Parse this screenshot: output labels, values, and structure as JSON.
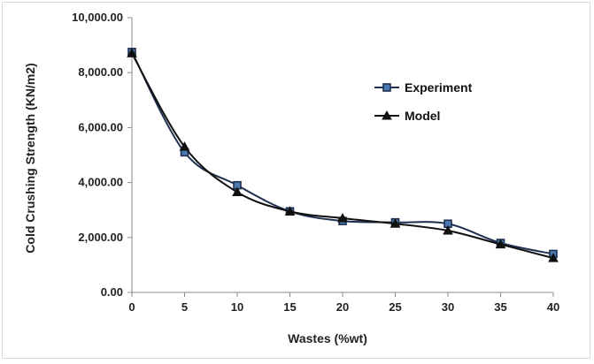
{
  "chart_data": {
    "type": "line",
    "title": "",
    "xlabel": "Wastes (%wt)",
    "ylabel": "Cold Crushing Strength (KN/m2)",
    "x": [
      0,
      5,
      10,
      15,
      20,
      25,
      30,
      35,
      40
    ],
    "x_ticks": [
      "0",
      "5",
      "10",
      "15",
      "20",
      "25",
      "30",
      "35",
      "40"
    ],
    "y_ticks": [
      {
        "value": 0,
        "label": "0.00"
      },
      {
        "value": 2000,
        "label": "2,000.00"
      },
      {
        "value": 4000,
        "label": "4,000.00"
      },
      {
        "value": 6000,
        "label": "6,000.00"
      },
      {
        "value": 8000,
        "label": "8,000.00"
      },
      {
        "value": 10000,
        "label": "10,000.00"
      }
    ],
    "xlim": [
      0,
      40
    ],
    "ylim": [
      0,
      10000
    ],
    "grid": false,
    "legend_position": "top-right",
    "series": [
      {
        "name": "Experiment",
        "marker": "square",
        "color": "#1f2f4f",
        "marker_fill": "#4a7ab0",
        "values": [
          8750,
          5100,
          3900,
          2950,
          2600,
          2550,
          2500,
          1800,
          1400
        ]
      },
      {
        "name": "Model",
        "marker": "triangle",
        "color": "#111111",
        "marker_fill": "#111111",
        "values": [
          8700,
          5300,
          3650,
          2950,
          2700,
          2500,
          2250,
          1750,
          1250
        ]
      }
    ]
  }
}
